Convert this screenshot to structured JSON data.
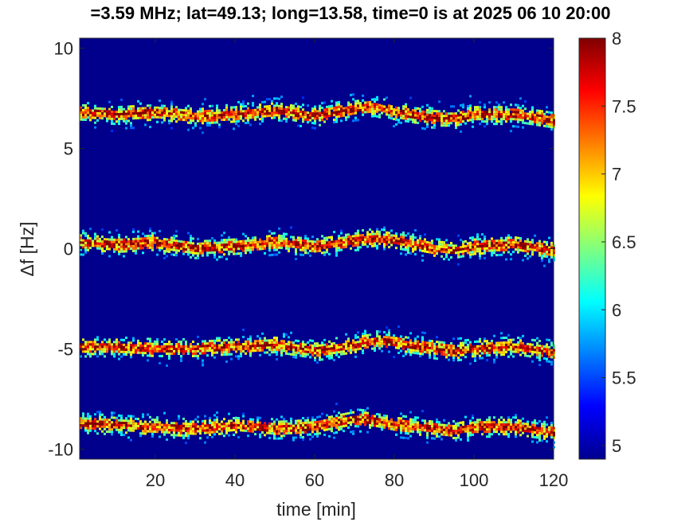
{
  "chart_data": {
    "type": "heatmap",
    "title": "=3.59 MHz;  lat=49.13; long=13.58, time=0 is at 2025 06 10 20:00",
    "xlabel": "time [min]",
    "ylabel": "Δf [Hz]",
    "xlim": [
      1,
      120
    ],
    "ylim": [
      -10.5,
      10.5
    ],
    "xticks": [
      20,
      40,
      60,
      80,
      100,
      120
    ],
    "yticks": [
      -10,
      -5,
      0,
      5,
      10
    ],
    "colorbar": {
      "ticks": [
        5,
        5.5,
        6,
        6.5,
        7,
        7.5,
        8
      ],
      "range": [
        4.9,
        8
      ],
      "colormap": "jet"
    },
    "background_level": 4.95,
    "series": [
      {
        "x": [
          1,
          10,
          20,
          30,
          40,
          50,
          60,
          70,
          75,
          80,
          90,
          95,
          100,
          110,
          120
        ],
        "y": [
          6.8,
          6.7,
          6.8,
          6.6,
          6.7,
          6.9,
          6.6,
          7.0,
          7.1,
          6.8,
          6.5,
          6.5,
          6.7,
          6.7,
          6.4
        ]
      },
      {
        "x": [
          1,
          10,
          20,
          30,
          40,
          50,
          60,
          70,
          75,
          80,
          90,
          95,
          100,
          110,
          120
        ],
        "y": [
          0.3,
          0.2,
          0.3,
          0.0,
          0.1,
          0.3,
          0.1,
          0.4,
          0.5,
          0.4,
          0.0,
          -0.1,
          0.1,
          0.2,
          -0.1
        ]
      },
      {
        "x": [
          1,
          10,
          20,
          30,
          40,
          50,
          60,
          70,
          75,
          80,
          90,
          95,
          100,
          110,
          120
        ],
        "y": [
          -4.9,
          -4.9,
          -5.0,
          -5.0,
          -4.9,
          -4.8,
          -5.1,
          -4.8,
          -4.6,
          -4.7,
          -5.0,
          -5.1,
          -5.0,
          -4.9,
          -5.2
        ]
      },
      {
        "x": [
          1,
          10,
          20,
          30,
          40,
          50,
          60,
          70,
          75,
          80,
          90,
          95,
          100,
          110,
          120
        ],
        "y": [
          -8.7,
          -8.8,
          -8.9,
          -9.0,
          -8.8,
          -9.0,
          -8.9,
          -8.5,
          -8.6,
          -8.8,
          -9.0,
          -9.1,
          -8.9,
          -8.9,
          -9.2
        ]
      }
    ]
  }
}
